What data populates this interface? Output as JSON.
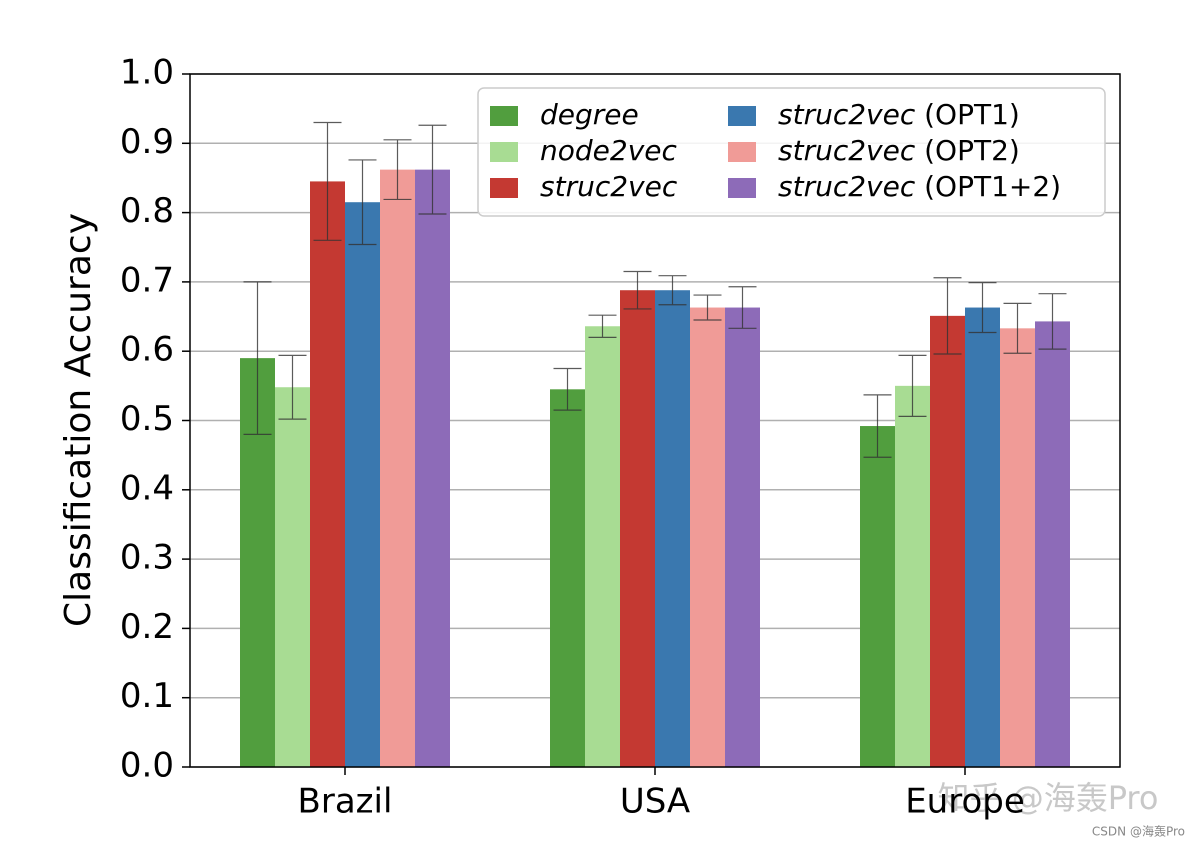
{
  "chart_data": {
    "type": "bar",
    "ylabel": "Classification Accuracy",
    "categories": [
      "Brazil",
      "USA",
      "Europe"
    ],
    "series": [
      {
        "name": "degree",
        "color": "#519e3e",
        "values": [
          0.59,
          0.545,
          0.492
        ],
        "errors": [
          0.11,
          0.03,
          0.045
        ]
      },
      {
        "name": "node2vec",
        "color": "#a8dc93",
        "values": [
          0.548,
          0.636,
          0.55
        ],
        "errors": [
          0.046,
          0.016,
          0.044
        ]
      },
      {
        "name": "struc2vec",
        "color": "#c43932",
        "values": [
          0.845,
          0.688,
          0.651
        ],
        "errors": [
          0.085,
          0.027,
          0.055
        ]
      },
      {
        "name": "struc2vec (OPT1)",
        "color": "#3a78af",
        "values": [
          0.815,
          0.688,
          0.663
        ],
        "errors": [
          0.061,
          0.021,
          0.036
        ]
      },
      {
        "name": "struc2vec (OPT2)",
        "color": "#f09b97",
        "values": [
          0.862,
          0.663,
          0.633
        ],
        "errors": [
          0.043,
          0.018,
          0.036
        ]
      },
      {
        "name": "struc2vec (OPT1+2)",
        "color": "#8d6bb8",
        "values": [
          0.862,
          0.663,
          0.643
        ],
        "errors": [
          0.064,
          0.03,
          0.04
        ]
      }
    ],
    "ylim": [
      0,
      1
    ],
    "yticks": [
      {
        "value": 0,
        "label": "0.0"
      },
      0.1,
      0.2,
      0.3,
      0.4,
      0.5,
      0.6,
      0.7,
      0.8,
      0.9,
      {
        "value": 1,
        "label": "1.0"
      }
    ],
    "grid": true,
    "legend_position": "upper right"
  },
  "watermark": {
    "main": "知乎 @海轰Pro",
    "corner": "CSDN @海轰Pro"
  }
}
